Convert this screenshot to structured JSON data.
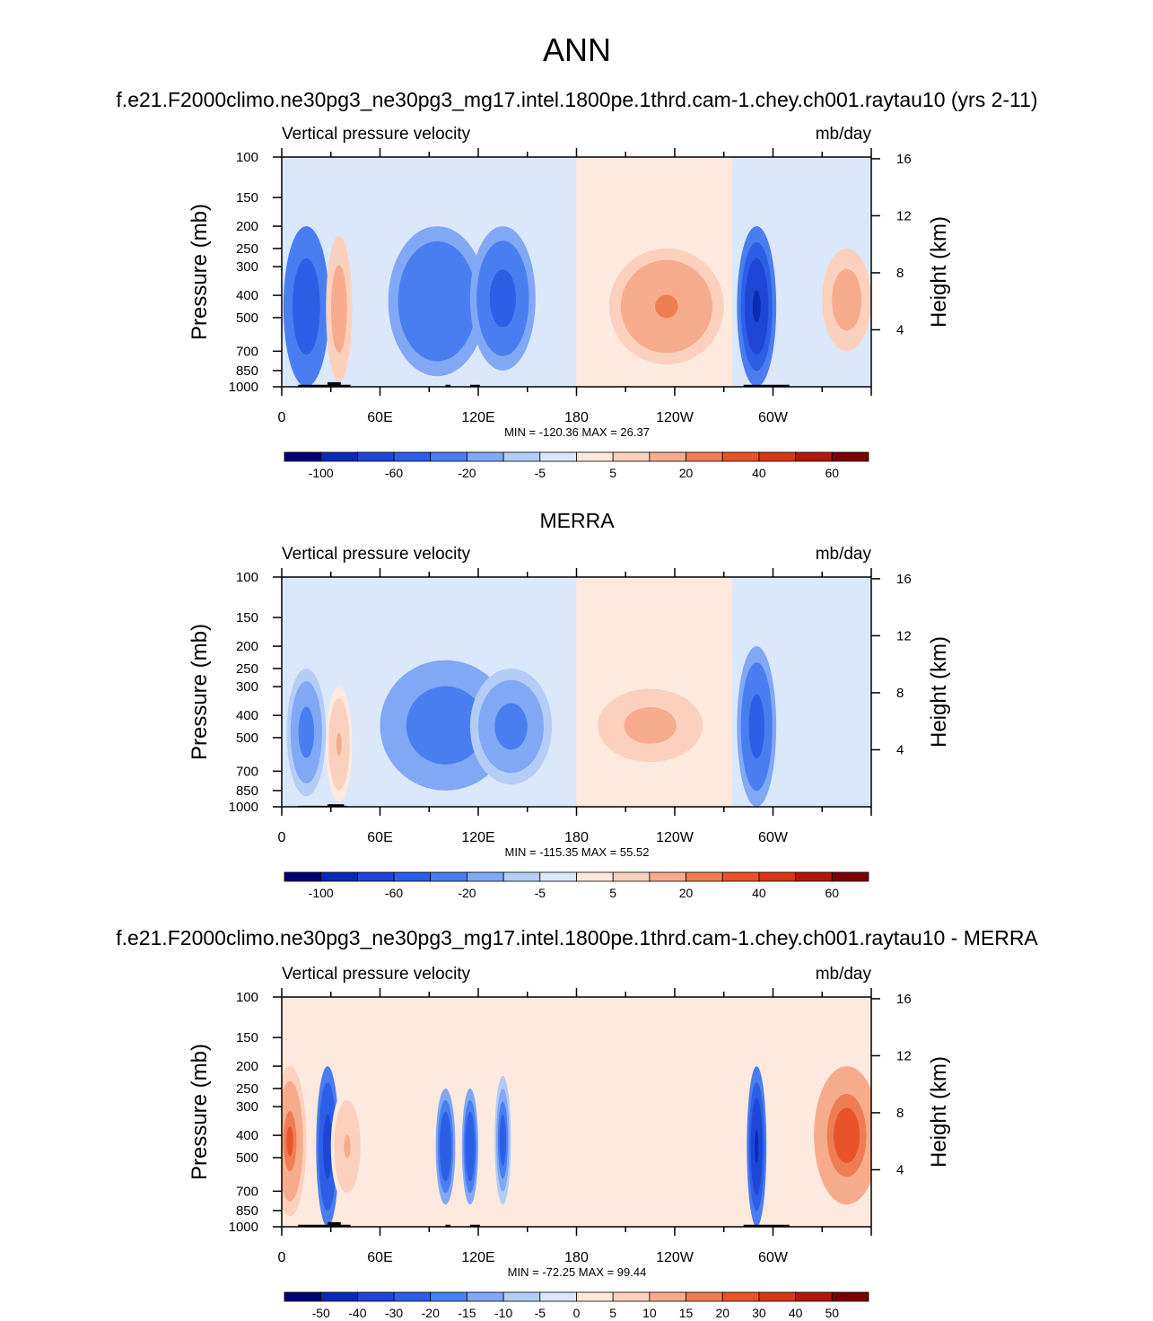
{
  "figure": {
    "title": "ANN",
    "caption_model": "f.e21.F2000climo.ne30pg3_ne30pg3_mg17.intel.1800pe.1thrd.cam-1.chey.ch001.raytau10 (yrs 2-11)",
    "caption_obs": "MERRA",
    "caption_diff": "f.e21.F2000climo.ne30pg3_ne30pg3_mg17.intel.1800pe.1thrd.cam-1.chey.ch001.raytau10 - MERRA"
  },
  "chart_data": [
    {
      "type": "heatmap",
      "variable": "Vertical pressure velocity",
      "units": "mb/day",
      "ylabel": "Pressure (mb)",
      "ylabel_right": "Height (km)",
      "x_ticks": [
        "0",
        "60E",
        "120E",
        "180",
        "120W",
        "60W"
      ],
      "x_tick_lon": [
        0,
        60,
        120,
        180,
        240,
        300
      ],
      "xlim": [
        0,
        360
      ],
      "y_ticks": [
        "100",
        "150",
        "200",
        "250",
        "300",
        "400",
        "500",
        "700",
        "850",
        "1000"
      ],
      "y_tick_values": [
        100,
        150,
        200,
        250,
        300,
        400,
        500,
        700,
        850,
        1000
      ],
      "y_scale": "log",
      "ylim": [
        1000,
        100
      ],
      "height_ticks": [
        "16",
        "12",
        "8",
        "4"
      ],
      "stats": "MIN = -120.36  MAX = 26.37",
      "min": -120.36,
      "max": 26.37,
      "colorbar_levels": [
        -120,
        -100,
        -80,
        -60,
        -40,
        -20,
        -10,
        -5,
        0,
        5,
        10,
        20,
        30,
        40,
        50,
        60,
        80
      ],
      "colorbar_labels": [
        "-100",
        "-60",
        "-20",
        "-5",
        "5",
        "20",
        "40",
        "60"
      ],
      "features": [
        {
          "lon": 15,
          "p_top": 200,
          "p_bot": 1000,
          "width": 14,
          "value": -60
        },
        {
          "lon": 35,
          "p_top": 220,
          "p_bot": 950,
          "width": 8,
          "value": 15
        },
        {
          "lon": 95,
          "p_top": 200,
          "p_bot": 900,
          "width": 30,
          "value": -40
        },
        {
          "lon": 135,
          "p_top": 200,
          "p_bot": 850,
          "width": 20,
          "value": -50
        },
        {
          "lon": 235,
          "p_top": 250,
          "p_bot": 800,
          "width": 35,
          "value": 20
        },
        {
          "lon": 290,
          "p_top": 200,
          "p_bot": 1000,
          "width": 12,
          "value": -90
        },
        {
          "lon": 345,
          "p_top": 250,
          "p_bot": 700,
          "width": 15,
          "value": 15
        }
      ]
    },
    {
      "type": "heatmap",
      "variable": "Vertical pressure velocity",
      "units": "mb/day",
      "ylabel": "Pressure (mb)",
      "ylabel_right": "Height (km)",
      "x_ticks": [
        "0",
        "60E",
        "120E",
        "180",
        "120W",
        "60W"
      ],
      "x_tick_lon": [
        0,
        60,
        120,
        180,
        240,
        300
      ],
      "xlim": [
        0,
        360
      ],
      "y_ticks": [
        "100",
        "150",
        "200",
        "250",
        "300",
        "400",
        "500",
        "700",
        "850",
        "1000"
      ],
      "y_tick_values": [
        100,
        150,
        200,
        250,
        300,
        400,
        500,
        700,
        850,
        1000
      ],
      "y_scale": "log",
      "ylim": [
        1000,
        100
      ],
      "height_ticks": [
        "16",
        "12",
        "8",
        "4"
      ],
      "stats": "MIN = -115.35  MAX =  55.52",
      "min": -115.35,
      "max": 55.52,
      "colorbar_levels": [
        -120,
        -100,
        -80,
        -60,
        -40,
        -20,
        -10,
        -5,
        0,
        5,
        10,
        20,
        30,
        40,
        50,
        60,
        80
      ],
      "colorbar_labels": [
        "-100",
        "-60",
        "-20",
        "-5",
        "5",
        "20",
        "40",
        "60"
      ],
      "features": [
        {
          "lon": 15,
          "p_top": 250,
          "p_bot": 900,
          "width": 12,
          "value": -25
        },
        {
          "lon": 35,
          "p_top": 300,
          "p_bot": 950,
          "width": 8,
          "value": 10
        },
        {
          "lon": 100,
          "p_top": 230,
          "p_bot": 850,
          "width": 40,
          "value": -30
        },
        {
          "lon": 140,
          "p_top": 250,
          "p_bot": 800,
          "width": 25,
          "value": -25
        },
        {
          "lon": 225,
          "p_top": 280,
          "p_bot": 700,
          "width": 40,
          "value": 12
        },
        {
          "lon": 290,
          "p_top": 200,
          "p_bot": 1000,
          "width": 12,
          "value": -50
        }
      ]
    },
    {
      "type": "heatmap",
      "variable": "Vertical pressure velocity",
      "units": "mb/day",
      "ylabel": "Pressure (mb)",
      "ylabel_right": "Height (km)",
      "x_ticks": [
        "0",
        "60E",
        "120E",
        "180",
        "120W",
        "60W"
      ],
      "x_tick_lon": [
        0,
        60,
        120,
        180,
        240,
        300
      ],
      "xlim": [
        0,
        360
      ],
      "y_ticks": [
        "100",
        "150",
        "200",
        "250",
        "300",
        "400",
        "500",
        "700",
        "850",
        "1000"
      ],
      "y_tick_values": [
        100,
        150,
        200,
        250,
        300,
        400,
        500,
        700,
        850,
        1000
      ],
      "y_scale": "log",
      "ylim": [
        1000,
        100
      ],
      "height_ticks": [
        "16",
        "12",
        "8",
        "4"
      ],
      "stats": "MIN = -72.25  MAX =  99.44",
      "min": -72.25,
      "max": 99.44,
      "colorbar_levels": [
        -60,
        -50,
        -40,
        -30,
        -20,
        -15,
        -10,
        -5,
        0,
        5,
        10,
        15,
        20,
        30,
        40,
        50,
        60
      ],
      "colorbar_labels": [
        "-50",
        "-40",
        "-30",
        "-20",
        "-15",
        "-10",
        "-5",
        "0",
        "5",
        "10",
        "15",
        "20",
        "30",
        "40",
        "50"
      ],
      "features": [
        {
          "lon": 5,
          "p_top": 200,
          "p_bot": 900,
          "width": 10,
          "value": 20
        },
        {
          "lon": 28,
          "p_top": 200,
          "p_bot": 1000,
          "width": 7,
          "value": -40
        },
        {
          "lon": 40,
          "p_top": 250,
          "p_bot": 800,
          "width": 10,
          "value": 10
        },
        {
          "lon": 100,
          "p_top": 250,
          "p_bot": 800,
          "width": 6,
          "value": -30
        },
        {
          "lon": 115,
          "p_top": 250,
          "p_bot": 800,
          "width": 5,
          "value": -30
        },
        {
          "lon": 135,
          "p_top": 220,
          "p_bot": 800,
          "width": 5,
          "value": -25
        },
        {
          "lon": 290,
          "p_top": 200,
          "p_bot": 1000,
          "width": 6,
          "value": -45
        },
        {
          "lon": 345,
          "p_top": 200,
          "p_bot": 800,
          "width": 20,
          "value": 25
        }
      ]
    }
  ],
  "colors": {
    "neg": [
      "#000070",
      "#0a2bb5",
      "#1f46d6",
      "#2d5fe6",
      "#4a7ef0",
      "#80a8f5",
      "#b3cdf7",
      "#dbe8fb"
    ],
    "pos": [
      "#fde9dd",
      "#fbd0bd",
      "#f6ac8c",
      "#ef7d54",
      "#e85429",
      "#d83818",
      "#b01a0d",
      "#7a0000"
    ],
    "topography": "#000000"
  }
}
